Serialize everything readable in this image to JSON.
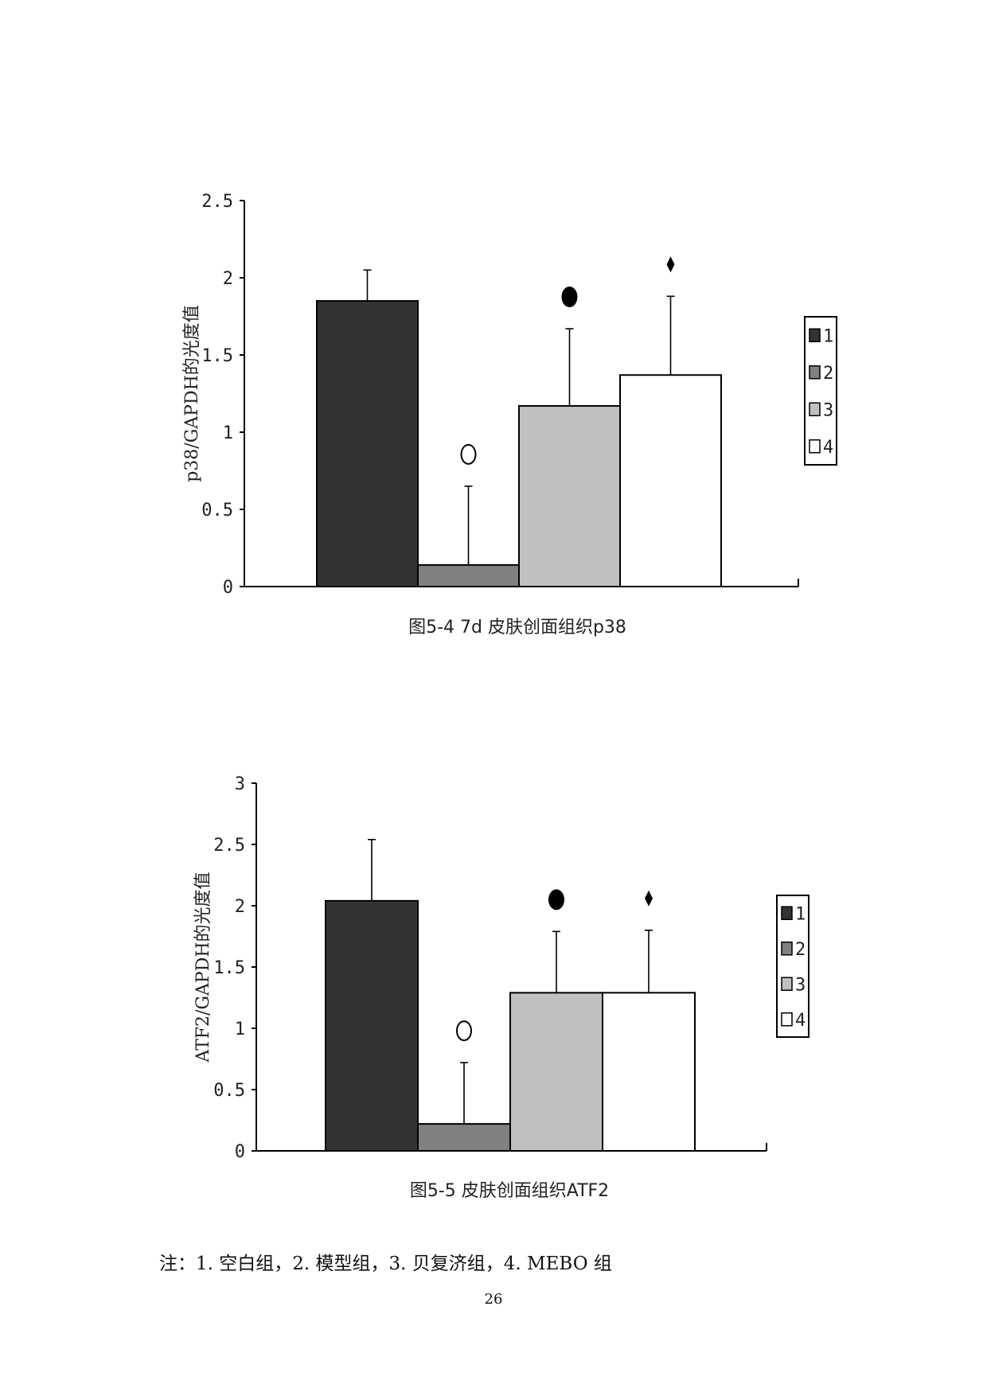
{
  "chart_data": [
    {
      "type": "bar",
      "caption": "图5-4 7d 皮肤创面组织p38",
      "ylabel": "p38/GAPDH的光度值",
      "ylim": [
        0,
        2.5
      ],
      "yticks": [
        "0",
        "0.5",
        "1",
        "1.5",
        "2",
        "2.5"
      ],
      "categories": [
        "1",
        "2",
        "3",
        "4"
      ],
      "values": [
        1.85,
        0.14,
        1.17,
        1.37
      ],
      "errors": [
        0.2,
        0.51,
        0.5,
        0.51
      ],
      "colors": [
        "#333333",
        "#808080",
        "#c0c0c0",
        "#ffffff"
      ],
      "markers": [
        "",
        "○",
        "●",
        "♦"
      ],
      "legend": [
        "1",
        "2",
        "3",
        "4"
      ],
      "legend_position": "right"
    },
    {
      "type": "bar",
      "caption": "图5-5 皮肤创面组织ATF2",
      "ylabel": "ATF2/GAPDH的光度值",
      "ylim": [
        0,
        3
      ],
      "yticks": [
        "0",
        "0.5",
        "1",
        "1.5",
        "2",
        "2.5",
        "3"
      ],
      "categories": [
        "1",
        "2",
        "3",
        "4"
      ],
      "values": [
        2.04,
        0.22,
        1.29,
        1.29
      ],
      "errors": [
        0.5,
        0.5,
        0.5,
        0.51
      ],
      "colors": [
        "#333333",
        "#808080",
        "#c0c0c0",
        "#ffffff"
      ],
      "markers": [
        "",
        "○",
        "●",
        "♦"
      ],
      "legend": [
        "1",
        "2",
        "3",
        "4"
      ],
      "legend_position": "right"
    }
  ],
  "note": "注：1. 空白组，2. 模型组，3. 贝复济组，4. MEBO 组",
  "page_number": "26"
}
